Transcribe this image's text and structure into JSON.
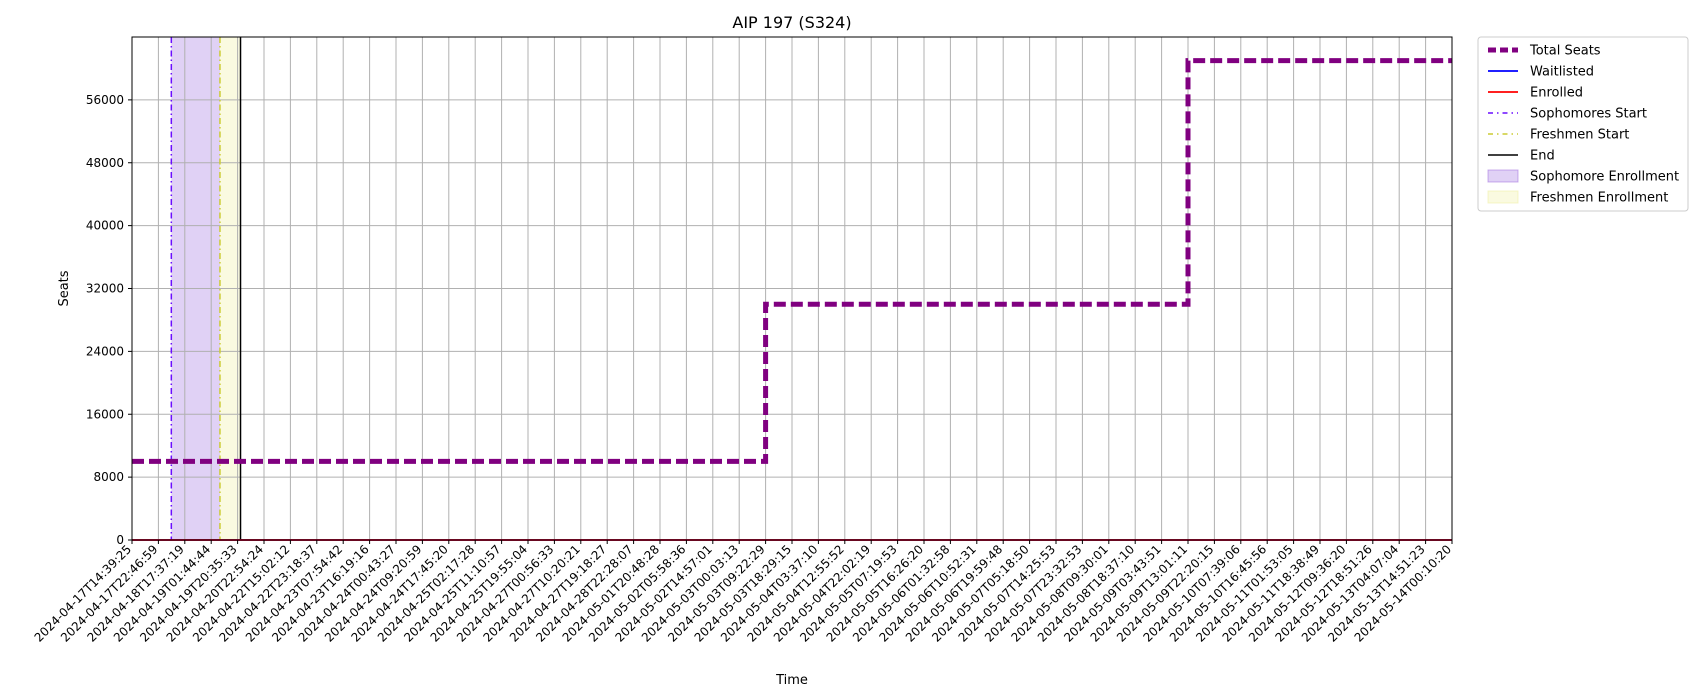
{
  "chart_data": {
    "type": "line",
    "title": "AIP 197 (S324)",
    "xlabel": "Time",
    "ylabel": "Seats",
    "ylim": [
      0,
      64000
    ],
    "yticks": [
      0,
      8000,
      16000,
      24000,
      32000,
      40000,
      48000,
      56000
    ],
    "grid": true,
    "legend_position": "outside-top-right",
    "x_ticks": [
      "2024-04-17T14:39:25",
      "2024-04-17T22:46:59",
      "2024-04-18T17:37:19",
      "2024-04-19T01:44:44",
      "2024-04-19T20:35:33",
      "2024-04-20T22:54:24",
      "2024-04-22T15:02:12",
      "2024-04-22T23:18:37",
      "2024-04-23T07:54:42",
      "2024-04-23T16:19:16",
      "2024-04-24T00:43:27",
      "2024-04-24T09:20:59",
      "2024-04-24T17:45:20",
      "2024-04-25T02:17:28",
      "2024-04-25T11:10:57",
      "2024-04-25T19:55:04",
      "2024-04-27T00:56:33",
      "2024-04-27T10:20:21",
      "2024-04-27T19:18:27",
      "2024-04-28T22:28:07",
      "2024-05-01T20:48:28",
      "2024-05-02T05:58:36",
      "2024-05-02T14:57:01",
      "2024-05-03T00:03:13",
      "2024-05-03T09:22:29",
      "2024-05-03T18:29:15",
      "2024-05-04T03:37:10",
      "2024-05-04T12:55:52",
      "2024-05-04T22:02:19",
      "2024-05-05T07:19:53",
      "2024-05-05T16:26:20",
      "2024-05-06T01:32:58",
      "2024-05-06T10:52:31",
      "2024-05-06T19:59:48",
      "2024-05-07T05:18:50",
      "2024-05-07T14:25:53",
      "2024-05-07T23:32:53",
      "2024-05-08T09:30:01",
      "2024-05-08T18:37:10",
      "2024-05-09T03:43:51",
      "2024-05-09T13:01:11",
      "2024-05-09T22:20:15",
      "2024-05-10T07:39:06",
      "2024-05-10T16:45:56",
      "2024-05-11T01:53:05",
      "2024-05-11T18:38:49",
      "2024-05-12T09:36:20",
      "2024-05-12T18:51:26",
      "2024-05-13T04:07:04",
      "2024-05-13T14:51:23",
      "2024-05-14T00:10:20"
    ],
    "series": [
      {
        "name": "Total Seats",
        "color": "#800080",
        "style": "dashed",
        "points": [
          {
            "x": "2024-04-17T14:39:25",
            "y": 10000
          },
          {
            "x": "2024-05-03T09:22:29",
            "y": 10000
          },
          {
            "x": "2024-05-03T09:22:29",
            "y": 30000
          },
          {
            "x": "2024-05-09T13:01:11",
            "y": 30000
          },
          {
            "x": "2024-05-09T13:01:11",
            "y": 61000
          },
          {
            "x": "2024-05-14T00:10:20",
            "y": 61000
          }
        ]
      },
      {
        "name": "Waitlisted",
        "color": "#0000ff",
        "style": "solid",
        "points": [
          {
            "x": "2024-04-17T14:39:25",
            "y": 0
          },
          {
            "x": "2024-05-14T00:10:20",
            "y": 0
          }
        ]
      },
      {
        "name": "Enrolled",
        "color": "#ff0000",
        "style": "solid",
        "points": [
          {
            "x": "2024-04-17T14:39:25",
            "y": 0
          },
          {
            "x": "2024-05-14T00:10:20",
            "y": 0
          }
        ]
      }
    ],
    "vertical_lines": [
      {
        "name": "Sophomores Start",
        "x": "2024-04-18T08:00:00",
        "color": "#6a0dff",
        "style": "dashdot"
      },
      {
        "name": "Freshmen Start",
        "x": "2024-04-19T08:00:00",
        "color": "#cccc33",
        "style": "dashdot"
      },
      {
        "name": "End",
        "x": "2024-04-19T23:30:00",
        "color": "#000000",
        "style": "solid"
      }
    ],
    "spans": [
      {
        "name": "Sophomore Enrollment",
        "from": "2024-04-18T08:00:00",
        "to": "2024-04-19T08:00:00",
        "color": "#9966dd"
      },
      {
        "name": "Freshmen Enrollment",
        "from": "2024-04-19T08:00:00",
        "to": "2024-04-19T23:30:00",
        "color": "#eeee99"
      }
    ],
    "legend": [
      "Total Seats",
      "Waitlisted",
      "Enrolled",
      "Sophomores Start",
      "Freshmen Start",
      "End",
      "Sophomore Enrollment",
      "Freshmen Enrollment"
    ]
  }
}
